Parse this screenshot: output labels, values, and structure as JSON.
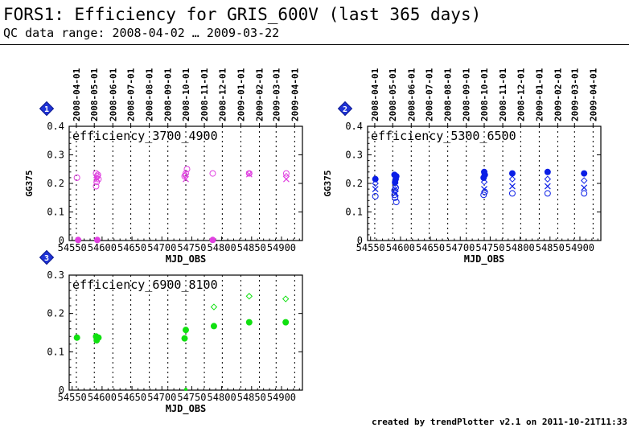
{
  "page": {
    "title": "FORS1: Efficiency for GRIS_600V (last 365 days)",
    "subtitle": "QC data range: 2008-04-02 … 2009-03-22",
    "footer": "created by trendPlotter v2.1 on 2011-10-21T11:33:19"
  },
  "chart_data": [
    {
      "type": "scatter",
      "panel_number": "1",
      "title": "efficiency_3700_4900",
      "ylabel": "GG375",
      "xlabel": "MJD_OBS",
      "xlim": [
        54545,
        54935
      ],
      "ylim": [
        0,
        0.4
      ],
      "x_ticks": [
        54550,
        54600,
        54650,
        54700,
        54750,
        54800,
        54850,
        54900
      ],
      "y_ticks": [
        0,
        0.1,
        0.2,
        0.3,
        0.4
      ],
      "date_ticks": [
        {
          "mjd": 54557,
          "label": "2008-04-01"
        },
        {
          "mjd": 54587,
          "label": "2008-05-01"
        },
        {
          "mjd": 54618,
          "label": "2008-06-01"
        },
        {
          "mjd": 54648,
          "label": "2008-07-01"
        },
        {
          "mjd": 54679,
          "label": "2008-08-01"
        },
        {
          "mjd": 54710,
          "label": "2008-09-01"
        },
        {
          "mjd": 54740,
          "label": "2008-10-01"
        },
        {
          "mjd": 54771,
          "label": "2008-11-01"
        },
        {
          "mjd": 54801,
          "label": "2008-12-01"
        },
        {
          "mjd": 54832,
          "label": "2009-01-01"
        },
        {
          "mjd": 54863,
          "label": "2009-02-01"
        },
        {
          "mjd": 54891,
          "label": "2009-03-01"
        },
        {
          "mjd": 54922,
          "label": "2009-04-01"
        }
      ],
      "color": "#e040e0",
      "series": [
        {
          "marker": "circle-open",
          "x": [
            54558,
            54590,
            54592,
            54594,
            54590,
            54591,
            54593,
            54738,
            54740,
            54742,
            54785,
            54846,
            54908
          ],
          "y": [
            0.22,
            0.235,
            0.225,
            0.215,
            0.19,
            0.205,
            0.23,
            0.225,
            0.235,
            0.25,
            0.235,
            0.235,
            0.235
          ]
        },
        {
          "marker": "diamond-open",
          "x": [
            54591,
            54739,
            54846,
            54908
          ],
          "y": [
            0.22,
            0.23,
            0.235,
            0.225
          ]
        },
        {
          "marker": "cross",
          "x": [
            54592,
            54740,
            54846,
            54908
          ],
          "y": [
            0.215,
            0.215,
            0.232,
            0.215
          ]
        },
        {
          "marker": "dot",
          "x": [
            54560,
            54592,
            54785
          ],
          "y": [
            0.002,
            0.002,
            0.002
          ]
        }
      ]
    },
    {
      "type": "scatter",
      "panel_number": "2",
      "title": "efficiency_5300_6500",
      "ylabel": "GG375",
      "xlabel": "MJD_OBS",
      "xlim": [
        54545,
        54935
      ],
      "ylim": [
        0,
        0.4
      ],
      "x_ticks": [
        54550,
        54600,
        54650,
        54700,
        54750,
        54800,
        54850,
        54900
      ],
      "y_ticks": [
        0,
        0.1,
        0.2,
        0.3,
        0.4
      ],
      "date_ticks": [
        {
          "mjd": 54557,
          "label": "2008-04-01"
        },
        {
          "mjd": 54587,
          "label": "2008-05-01"
        },
        {
          "mjd": 54618,
          "label": "2008-06-01"
        },
        {
          "mjd": 54648,
          "label": "2008-07-01"
        },
        {
          "mjd": 54679,
          "label": "2008-08-01"
        },
        {
          "mjd": 54710,
          "label": "2008-09-01"
        },
        {
          "mjd": 54740,
          "label": "2008-10-01"
        },
        {
          "mjd": 54771,
          "label": "2008-11-01"
        },
        {
          "mjd": 54801,
          "label": "2008-12-01"
        },
        {
          "mjd": 54832,
          "label": "2009-01-01"
        },
        {
          "mjd": 54863,
          "label": "2009-02-01"
        },
        {
          "mjd": 54891,
          "label": "2009-03-01"
        },
        {
          "mjd": 54922,
          "label": "2009-04-01"
        }
      ],
      "color": "#0a1ee6",
      "series": [
        {
          "marker": "dot",
          "x": [
            54558,
            54590,
            54593,
            54591,
            54592,
            54740,
            54741,
            54739,
            54787,
            54846,
            54907
          ],
          "y": [
            0.215,
            0.23,
            0.225,
            0.205,
            0.215,
            0.24,
            0.23,
            0.22,
            0.235,
            0.24,
            0.235
          ]
        },
        {
          "marker": "diamond-open",
          "x": [
            54558,
            54591,
            54740,
            54787,
            54846,
            54907
          ],
          "y": [
            0.2,
            0.2,
            0.205,
            0.215,
            0.215,
            0.21
          ]
        },
        {
          "marker": "cross",
          "x": [
            54558,
            54591,
            54592,
            54740,
            54787,
            54846,
            54907
          ],
          "y": [
            0.18,
            0.18,
            0.165,
            0.18,
            0.19,
            0.19,
            0.185
          ]
        },
        {
          "marker": "circle-open",
          "x": [
            54558,
            54590,
            54591,
            54593,
            54590,
            54592,
            54739,
            54741,
            54787,
            54846,
            54907
          ],
          "y": [
            0.155,
            0.16,
            0.15,
            0.135,
            0.175,
            0.185,
            0.16,
            0.17,
            0.165,
            0.165,
            0.165
          ]
        }
      ]
    },
    {
      "type": "scatter",
      "panel_number": "3",
      "title": "efficiency_6900_8100",
      "ylabel": "",
      "xlabel": "MJD_OBS",
      "xlim": [
        54545,
        54935
      ],
      "ylim": [
        0,
        0.3
      ],
      "x_ticks": [
        54550,
        54600,
        54650,
        54700,
        54750,
        54800,
        54850,
        54900
      ],
      "y_ticks": [
        0,
        0.1,
        0.2,
        0.3
      ],
      "date_ticks": [
        {
          "mjd": 54557,
          "label": "2008-04-01"
        },
        {
          "mjd": 54587,
          "label": "2008-05-01"
        },
        {
          "mjd": 54618,
          "label": "2008-06-01"
        },
        {
          "mjd": 54648,
          "label": "2008-07-01"
        },
        {
          "mjd": 54679,
          "label": "2008-08-01"
        },
        {
          "mjd": 54710,
          "label": "2008-09-01"
        },
        {
          "mjd": 54740,
          "label": "2008-10-01"
        },
        {
          "mjd": 54771,
          "label": "2008-11-01"
        },
        {
          "mjd": 54801,
          "label": "2008-12-01"
        },
        {
          "mjd": 54832,
          "label": "2009-01-01"
        },
        {
          "mjd": 54863,
          "label": "2009-02-01"
        },
        {
          "mjd": 54891,
          "label": "2009-03-01"
        },
        {
          "mjd": 54922,
          "label": "2009-04-01"
        }
      ],
      "color": "#10e010",
      "series": [
        {
          "marker": "dot",
          "x": [
            54558,
            54590,
            54592,
            54594,
            54591,
            54738,
            54740,
            54787,
            54846,
            54907
          ],
          "y": [
            0.137,
            0.14,
            0.135,
            0.137,
            0.13,
            0.135,
            0.157,
            0.167,
            0.177,
            0.177
          ]
        },
        {
          "marker": "diamond-open",
          "x": [
            54787,
            54846,
            54907
          ],
          "y": [
            0.217,
            0.245,
            0.238
          ]
        },
        {
          "marker": "dot-small",
          "x": [
            54740
          ],
          "y": [
            0.002
          ]
        }
      ]
    }
  ]
}
